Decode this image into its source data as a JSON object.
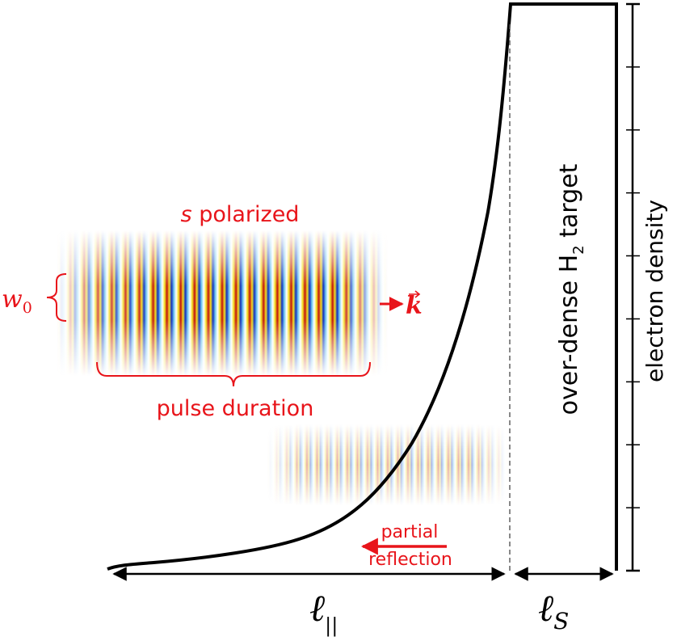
{
  "pulse": {
    "polarization_var": "s",
    "polarization_word": "polarized",
    "beam_waist_base": "w",
    "beam_waist_sub": "0",
    "wavevector": "k",
    "duration_label": "pulse duration"
  },
  "reflection": {
    "line1": "partial",
    "line2": "reflection"
  },
  "target": {
    "label_pre": "over-dense H",
    "label_sub": "2",
    "label_post": " target"
  },
  "axis": {
    "label": "electron density"
  },
  "lengths": {
    "gradient_base": "ℓ",
    "gradient_sub": "||",
    "solid_base": "ℓ",
    "solid_sub": "S"
  },
  "colors": {
    "annotation": "#e8141a",
    "ink": "#000000",
    "field_positive": "#c01010",
    "field_negative": "#1030c0",
    "field_mid": "#f5e020"
  }
}
